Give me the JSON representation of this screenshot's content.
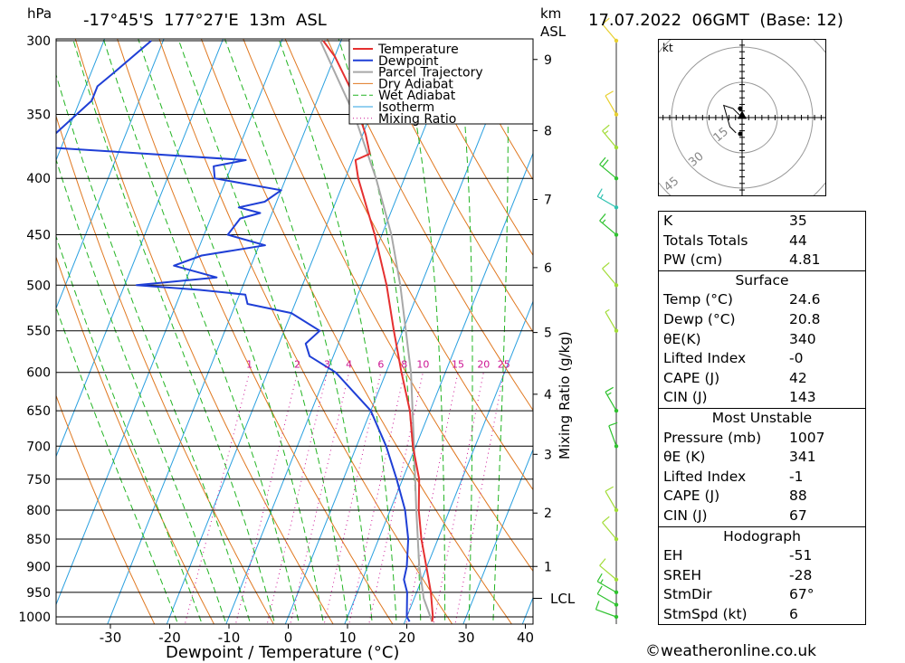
{
  "header": {
    "pressure_unit": "hPa",
    "location": "-17°45'S  177°27'E  13m  ASL",
    "height_unit_line1": "km",
    "height_unit_line2": "ASL",
    "datetime": "17.07.2022  06GMT  (Base: 12)"
  },
  "chart_data": {
    "type": "line",
    "title": "-17°45'S  177°27'E  13m  ASL",
    "xlabel": "Dewpoint / Temperature (°C)",
    "ylabel": "hPa",
    "right_label": "Mixing Ratio (g/kg)",
    "x_ticks": [
      -30,
      -20,
      -10,
      0,
      10,
      20,
      30,
      40
    ],
    "x_range": [
      -40,
      40
    ],
    "pressure_levels": [
      300,
      350,
      400,
      450,
      500,
      550,
      600,
      650,
      700,
      750,
      800,
      850,
      900,
      950,
      1000
    ],
    "height_km_ticks": [
      1,
      2,
      3,
      4,
      5,
      6,
      7,
      8,
      9
    ],
    "height_km_pressure": [
      900,
      805,
      712,
      628,
      552,
      482,
      418,
      362,
      312
    ],
    "lcl_label": "LCL",
    "lcl_pressure": 962,
    "mixing_ratio_labels": [
      "1",
      "2",
      "3",
      "4",
      "6",
      "8",
      "10",
      "15",
      "20",
      "25"
    ],
    "legend": [
      "Temperature",
      "Dewpoint",
      "Parcel Trajectory",
      "Dry Adiabat",
      "Wet Adiabat",
      "Isotherm",
      "Mixing Ratio"
    ],
    "colors": {
      "temperature": "#e53030",
      "dewpoint": "#1f3fd6",
      "parcel": "#a8a8a8",
      "dry_adiabat": "#e07820",
      "wet_adiabat": "#22b422",
      "isotherm": "#2aa0e0",
      "mixing_ratio": "#cc1493"
    },
    "series": [
      {
        "name": "Temperature",
        "points": [
          [
            1010,
            24.6
          ],
          [
            1000,
            24.4
          ],
          [
            950,
            22.4
          ],
          [
            900,
            19.9
          ],
          [
            850,
            17.2
          ],
          [
            800,
            14.8
          ],
          [
            750,
            12.8
          ],
          [
            700,
            9.5
          ],
          [
            650,
            6.6
          ],
          [
            600,
            2.6
          ],
          [
            550,
            -1.5
          ],
          [
            500,
            -5.8
          ],
          [
            450,
            -11.2
          ],
          [
            400,
            -17.8
          ],
          [
            385,
            -19.5
          ],
          [
            380,
            -17.5
          ],
          [
            365,
            -19.5
          ],
          [
            350,
            -22
          ],
          [
            330,
            -25.5
          ],
          [
            310,
            -30
          ],
          [
            300,
            -33
          ]
        ]
      },
      {
        "name": "Dewpoint",
        "points": [
          [
            1010,
            20.8
          ],
          [
            1000,
            20.0
          ],
          [
            950,
            18.4
          ],
          [
            925,
            17.0
          ],
          [
            900,
            16.6
          ],
          [
            850,
            15.0
          ],
          [
            800,
            12.5
          ],
          [
            750,
            9.0
          ],
          [
            700,
            5.0
          ],
          [
            650,
            0.0
          ],
          [
            600,
            -8.5
          ],
          [
            580,
            -14
          ],
          [
            565,
            -15.5
          ],
          [
            550,
            -14
          ],
          [
            530,
            -20
          ],
          [
            520,
            -28
          ],
          [
            510,
            -29
          ],
          [
            505,
            -37
          ],
          [
            500,
            -48
          ],
          [
            492,
            -35
          ],
          [
            480,
            -43
          ],
          [
            470,
            -39
          ],
          [
            460,
            -29
          ],
          [
            450,
            -36
          ],
          [
            435,
            -35
          ],
          [
            430,
            -32
          ],
          [
            425,
            -36
          ],
          [
            420,
            -32
          ],
          [
            410,
            -30
          ],
          [
            400,
            -42
          ],
          [
            390,
            -43
          ],
          [
            385,
            -38
          ],
          [
            375,
            -72
          ],
          [
            365,
            -72
          ],
          [
            340,
            -68
          ],
          [
            330,
            -68
          ],
          [
            320,
            -66
          ],
          [
            300,
            -62
          ]
        ]
      },
      {
        "name": "Parcel Trajectory",
        "points": [
          [
            1010,
            24.6
          ],
          [
            962,
            21.6
          ],
          [
            900,
            18.7
          ],
          [
            800,
            14.4
          ],
          [
            700,
            9.7
          ],
          [
            600,
            4.2
          ],
          [
            500,
            -3.5
          ],
          [
            450,
            -8.4
          ],
          [
            400,
            -14.8
          ],
          [
            350,
            -22.8
          ],
          [
            300,
            -33.5
          ]
        ]
      }
    ],
    "wind_barbs": [
      {
        "p": 1000,
        "dir": 290,
        "spd": 10,
        "color": "#2fc22f"
      },
      {
        "p": 975,
        "dir": 300,
        "spd": 10,
        "color": "#2fc22f"
      },
      {
        "p": 950,
        "dir": 300,
        "spd": 15,
        "color": "#2fc22f"
      },
      {
        "p": 925,
        "dir": 310,
        "spd": 10,
        "color": "#a2dc38"
      },
      {
        "p": 850,
        "dir": 320,
        "spd": 10,
        "color": "#a2dc38"
      },
      {
        "p": 800,
        "dir": 330,
        "spd": 10,
        "color": "#a2dc38"
      },
      {
        "p": 700,
        "dir": 340,
        "spd": 10,
        "color": "#2fc22f"
      },
      {
        "p": 650,
        "dir": 330,
        "spd": 15,
        "color": "#2fc22f"
      },
      {
        "p": 550,
        "dir": 330,
        "spd": 5,
        "color": "#a2dc38"
      },
      {
        "p": 500,
        "dir": 320,
        "spd": 10,
        "color": "#a2dc38"
      },
      {
        "p": 450,
        "dir": 310,
        "spd": 15,
        "color": "#2fc22f"
      },
      {
        "p": 425,
        "dir": 300,
        "spd": 15,
        "color": "#2fc2b0"
      },
      {
        "p": 400,
        "dir": 310,
        "spd": 20,
        "color": "#2fc22f"
      },
      {
        "p": 375,
        "dir": 320,
        "spd": 15,
        "color": "#a2dc38"
      },
      {
        "p": 350,
        "dir": 330,
        "spd": 10,
        "color": "#e8d030"
      },
      {
        "p": 300,
        "dir": 320,
        "spd": 10,
        "color": "#e8d030"
      }
    ]
  },
  "hodograph": {
    "unit": "kt",
    "ring_labels": [
      "15",
      "30",
      "45"
    ],
    "trace_kt": [
      [
        0,
        0
      ],
      [
        -3,
        3
      ],
      [
        -6,
        4
      ],
      [
        -4,
        -3
      ],
      [
        -2,
        -5
      ]
    ],
    "storm_motion_kt": [
      0,
      1
    ]
  },
  "indices": [
    {
      "label": "K",
      "value": "35"
    },
    {
      "label": "Totals Totals",
      "value": "44"
    },
    {
      "label": "PW (cm)",
      "value": "4.81"
    }
  ],
  "surface": {
    "title": "Surface",
    "rows": [
      {
        "label": "Temp (°C)",
        "value": "24.6"
      },
      {
        "label": "Dewp (°C)",
        "value": "20.8"
      },
      {
        "label": "θE(K)",
        "value": "340"
      },
      {
        "label": "Lifted Index",
        "value": "-0"
      },
      {
        "label": "CAPE (J)",
        "value": "42"
      },
      {
        "label": "CIN (J)",
        "value": "143"
      }
    ]
  },
  "most_unstable": {
    "title": "Most Unstable",
    "rows": [
      {
        "label": "Pressure (mb)",
        "value": "1007"
      },
      {
        "label": "θE (K)",
        "value": "341"
      },
      {
        "label": "Lifted Index",
        "value": "-1"
      },
      {
        "label": "CAPE (J)",
        "value": "88"
      },
      {
        "label": "CIN (J)",
        "value": "67"
      }
    ]
  },
  "hodo_stats": {
    "title": "Hodograph",
    "rows": [
      {
        "label": "EH",
        "value": "-51"
      },
      {
        "label": "SREH",
        "value": "-28"
      },
      {
        "label": "StmDir",
        "value": "67°"
      },
      {
        "label": "StmSpd (kt)",
        "value": "6"
      }
    ]
  },
  "footer": {
    "copyright_symbol": "©",
    "site": "weatheronline.co.uk"
  }
}
